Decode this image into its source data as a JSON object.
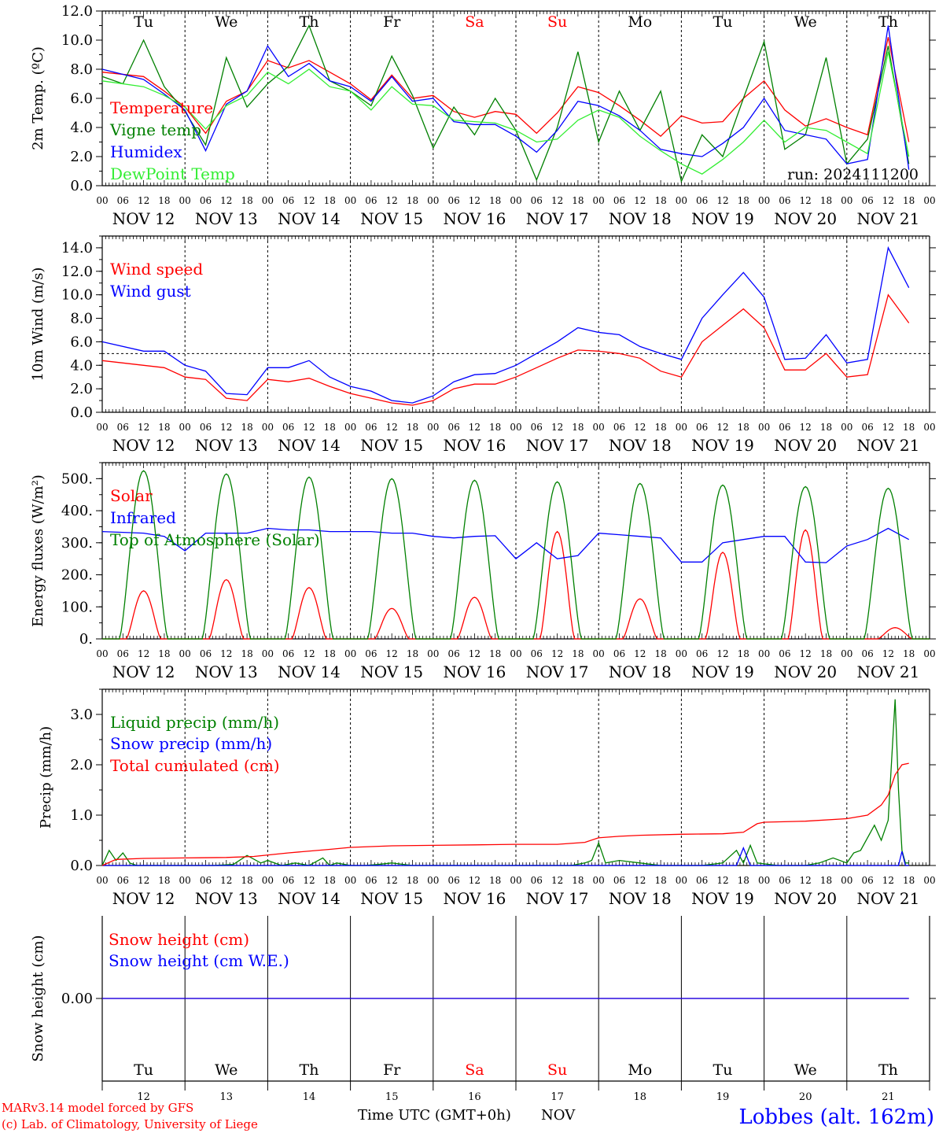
{
  "days": [
    "Tu",
    "We",
    "Th",
    "Fr",
    "Sa",
    "Su",
    "Mo",
    "Tu",
    "We",
    "Th"
  ],
  "weekend_days": [
    4,
    5
  ],
  "hour_ticks": [
    "00",
    "06",
    "12",
    "18"
  ],
  "end_tick": "00",
  "date_labels": [
    "NOV 12",
    "NOV 13",
    "NOV 14",
    "NOV 15",
    "NOV 16",
    "NOV 17",
    "NOV 18",
    "NOV 19",
    "NOV 20",
    "NOV 21"
  ],
  "day_numbers": [
    "12",
    "13",
    "14",
    "15",
    "16",
    "17",
    "18",
    "19",
    "20",
    "21"
  ],
  "colors": {
    "red": "#ff0000",
    "green": "#008000",
    "blue": "#0000ff",
    "lightgreen": "#33ee33",
    "purple": "#7f007f",
    "weekend": "#ff0000"
  },
  "run_label": "run: 2024111200",
  "footer": {
    "model": "MARv3.14 model forced by GFS",
    "copyright": "(c) Lab. of Climatology, University of Liege",
    "time_axis": "Time UTC (GMT+0h)",
    "month": "NOV",
    "station": "Lobbes (alt. 162m)"
  },
  "chart_data": [
    {
      "type": "line",
      "ylabel": "2m Temp. (ºC)",
      "ylim": [
        0,
        12
      ],
      "yticks": [
        0,
        2,
        4,
        6,
        8,
        10,
        12
      ],
      "ytick_labels": [
        "0.0",
        "2.0",
        "4.0",
        "6.0",
        "8.0",
        "10.0",
        "12.0"
      ],
      "grid": "vertical dashed day separators",
      "legend_position": "bottom-left",
      "series": [
        {
          "name": "Temperature",
          "color": "red",
          "x": [
            0,
            12,
            18,
            24,
            30,
            36,
            42,
            48,
            54,
            60,
            66,
            72,
            78,
            84,
            90,
            96,
            102,
            108,
            114,
            120,
            126,
            132,
            138,
            144,
            150,
            156,
            162,
            168,
            174,
            180,
            186,
            192,
            198,
            204,
            210,
            216,
            222,
            228,
            234
          ],
          "y": [
            7.8,
            7.5,
            6.5,
            5.4,
            3.6,
            5.8,
            6.5,
            8.6,
            8.1,
            8.6,
            7.8,
            7.0,
            5.9,
            7.6,
            6.0,
            6.2,
            5.1,
            4.7,
            5.1,
            4.9,
            3.6,
            5.0,
            6.8,
            6.4,
            5.5,
            4.5,
            3.4,
            4.8,
            4.3,
            4.4,
            6.0,
            7.2,
            5.2,
            4.1,
            4.6,
            4.0,
            3.5,
            10.2,
            3.0
          ]
        },
        {
          "name": "Vigne temp",
          "color": "green",
          "x": [
            0,
            6,
            12,
            18,
            24,
            30,
            36,
            42,
            48,
            54,
            60,
            66,
            72,
            78,
            84,
            90,
            96,
            102,
            108,
            114,
            120,
            126,
            132,
            138,
            144,
            150,
            156,
            162,
            168,
            174,
            180,
            186,
            192,
            198,
            204,
            210,
            216,
            222,
            228,
            234
          ],
          "y": [
            7.5,
            7.0,
            10.0,
            6.8,
            5.1,
            2.8,
            8.8,
            5.4,
            7.0,
            8.2,
            11.0,
            7.2,
            6.5,
            5.5,
            8.9,
            6.2,
            2.6,
            5.4,
            3.5,
            6.0,
            3.8,
            0.4,
            4.0,
            9.2,
            3.0,
            6.5,
            3.8,
            6.5,
            0.3,
            3.5,
            2.0,
            6.0,
            9.9,
            2.5,
            3.5,
            8.8,
            1.5,
            3.2,
            9.6,
            1.5
          ]
        },
        {
          "name": "Humidex",
          "color": "blue",
          "x": [
            0,
            12,
            18,
            24,
            30,
            36,
            42,
            48,
            54,
            60,
            66,
            72,
            78,
            84,
            90,
            96,
            102,
            108,
            114,
            120,
            126,
            132,
            138,
            144,
            150,
            156,
            162,
            168,
            174,
            180,
            186,
            192,
            198,
            204,
            210,
            216,
            222,
            228,
            234
          ],
          "y": [
            8.0,
            7.3,
            6.3,
            5.2,
            2.4,
            5.6,
            6.5,
            9.6,
            7.5,
            8.4,
            7.2,
            6.8,
            5.8,
            7.5,
            5.8,
            6.0,
            4.4,
            4.2,
            4.2,
            3.4,
            2.3,
            3.8,
            5.8,
            5.5,
            4.8,
            3.8,
            2.5,
            2.2,
            2.0,
            2.9,
            4.0,
            6.0,
            3.8,
            3.5,
            3.2,
            1.5,
            1.8,
            11.0,
            1.1
          ]
        },
        {
          "name": "DewPoint Temp",
          "color": "lightgreen",
          "x": [
            0,
            12,
            18,
            24,
            30,
            36,
            42,
            48,
            54,
            60,
            66,
            72,
            78,
            84,
            90,
            96,
            102,
            108,
            114,
            120,
            126,
            132,
            138,
            144,
            150,
            156,
            162,
            168,
            174,
            180,
            186,
            192,
            198,
            204,
            210,
            216,
            222,
            228,
            234
          ],
          "y": [
            7.2,
            6.8,
            6.2,
            5.4,
            3.9,
            5.5,
            6.2,
            7.8,
            7.0,
            8.0,
            6.8,
            6.5,
            5.2,
            6.8,
            5.6,
            5.5,
            4.5,
            4.4,
            4.3,
            3.8,
            3.0,
            3.2,
            4.5,
            5.2,
            4.7,
            3.4,
            2.4,
            1.5,
            0.8,
            1.8,
            3.0,
            4.5,
            3.0,
            4.0,
            3.8,
            3.0,
            2.2,
            9.2,
            2.0
          ]
        }
      ]
    },
    {
      "type": "line",
      "ylabel": "10m Wind (m/s)",
      "ylim": [
        0,
        15
      ],
      "yticks": [
        0,
        2,
        4,
        6,
        8,
        10,
        12,
        14
      ],
      "ytick_labels": [
        "0.0",
        "2.0",
        "4.0",
        "6.0",
        "8.0",
        "10.0",
        "12.0",
        "14.0"
      ],
      "reference_line": 5,
      "grid": "vertical dashed day separators",
      "legend_position": "top-left",
      "series": [
        {
          "name": "Wind speed",
          "color": "red",
          "x": [
            0,
            12,
            18,
            24,
            30,
            36,
            42,
            48,
            54,
            60,
            66,
            72,
            78,
            84,
            90,
            96,
            102,
            108,
            114,
            120,
            126,
            132,
            138,
            144,
            150,
            156,
            162,
            168,
            174,
            180,
            186,
            192,
            198,
            204,
            210,
            216,
            222,
            228,
            234
          ],
          "y": [
            4.4,
            4.0,
            3.8,
            3.0,
            2.8,
            1.2,
            1.0,
            2.8,
            2.6,
            2.9,
            2.2,
            1.6,
            1.2,
            0.8,
            0.6,
            1.0,
            2.0,
            2.4,
            2.4,
            3.0,
            3.8,
            4.6,
            5.3,
            5.2,
            5.0,
            4.6,
            3.5,
            3.0,
            6.0,
            7.4,
            8.8,
            7.2,
            3.6,
            3.6,
            5.0,
            3.0,
            3.2,
            10.0,
            7.6
          ]
        },
        {
          "name": "Wind gust",
          "color": "blue",
          "x": [
            0,
            12,
            18,
            24,
            30,
            36,
            42,
            48,
            54,
            60,
            66,
            72,
            78,
            84,
            90,
            96,
            102,
            108,
            114,
            120,
            126,
            132,
            138,
            144,
            150,
            156,
            162,
            168,
            174,
            180,
            186,
            192,
            198,
            204,
            210,
            216,
            222,
            228,
            234
          ],
          "y": [
            6.0,
            5.2,
            5.2,
            4.0,
            3.5,
            1.6,
            1.5,
            3.8,
            3.8,
            4.4,
            3.0,
            2.2,
            1.8,
            1.0,
            0.8,
            1.4,
            2.6,
            3.2,
            3.3,
            4.0,
            5.0,
            6.0,
            7.2,
            6.8,
            6.6,
            5.6,
            5.0,
            4.5,
            8.0,
            10.0,
            11.9,
            9.8,
            4.5,
            4.6,
            6.6,
            4.2,
            4.5,
            14.0,
            10.6
          ]
        }
      ]
    },
    {
      "type": "line",
      "ylabel": "Energy fluxes (W/m²)",
      "ylim": [
        0,
        550
      ],
      "yticks": [
        0,
        100,
        200,
        300,
        400,
        500
      ],
      "ytick_labels": [
        "0.",
        "100.",
        "200.",
        "300.",
        "400.",
        "500."
      ],
      "grid": "vertical dashed day separators",
      "legend_position": "top-left",
      "series": [
        {
          "name": "Solar",
          "color": "red",
          "type": "daily-peaks",
          "peak_hours": [
            12,
            12,
            12,
            12,
            12,
            12,
            12,
            12,
            12,
            14
          ],
          "peaks": [
            150,
            185,
            160,
            95,
            130,
            335,
            125,
            270,
            340,
            35
          ]
        },
        {
          "name": "Infrared",
          "color": "blue",
          "x": [
            0,
            12,
            18,
            24,
            30,
            36,
            42,
            48,
            54,
            60,
            66,
            72,
            78,
            84,
            90,
            96,
            102,
            108,
            114,
            120,
            126,
            132,
            138,
            144,
            150,
            156,
            162,
            168,
            174,
            180,
            186,
            192,
            198,
            204,
            210,
            216,
            222,
            228,
            234
          ],
          "y": [
            335,
            330,
            320,
            275,
            330,
            330,
            330,
            345,
            340,
            340,
            335,
            335,
            335,
            330,
            330,
            320,
            315,
            320,
            322,
            250,
            300,
            250,
            260,
            330,
            325,
            320,
            315,
            240,
            240,
            300,
            310,
            320,
            320,
            240,
            238,
            290,
            310,
            345,
            310
          ]
        },
        {
          "name": "Top of Atmosphere (Solar)",
          "color": "green",
          "type": "daily-peaks",
          "peak_hours": [
            12,
            12,
            12,
            12,
            12,
            12,
            12,
            12,
            12,
            12
          ],
          "peaks": [
            525,
            515,
            505,
            500,
            495,
            490,
            485,
            480,
            475,
            470
          ]
        }
      ]
    },
    {
      "type": "line",
      "ylabel": "Precip (mm/h)",
      "ylim": [
        0,
        3.5
      ],
      "yticks": [
        0,
        1,
        2,
        3
      ],
      "ytick_labels": [
        "0.0",
        "1.0",
        "2.0",
        "3.0"
      ],
      "grid": "vertical dashed day separators",
      "legend_position": "top-left",
      "series": [
        {
          "name": "Liquid precip (mm/h)",
          "color": "green",
          "x": [
            0,
            2,
            4,
            6,
            8,
            10,
            14,
            20,
            26,
            32,
            38,
            42,
            46,
            48,
            52,
            56,
            60,
            64,
            66,
            68,
            72,
            76,
            80,
            84,
            90,
            96,
            100,
            110,
            120,
            130,
            136,
            140,
            142,
            144,
            146,
            150,
            156,
            162,
            168,
            174,
            180,
            184,
            186,
            188,
            190,
            196,
            204,
            208,
            212,
            216,
            218,
            220,
            224,
            226,
            228,
            230,
            231,
            232,
            233,
            234
          ],
          "y": [
            0,
            0.3,
            0.1,
            0.25,
            0.05,
            0,
            0,
            0,
            0,
            0,
            0.02,
            0.2,
            0.05,
            0.1,
            0,
            0.05,
            0,
            0.15,
            0,
            0.05,
            0,
            0,
            0.02,
            0.05,
            0,
            0,
            0,
            0,
            0,
            0,
            0,
            0.05,
            0.1,
            0.45,
            0.05,
            0.1,
            0.05,
            0,
            0,
            0,
            0.05,
            0.3,
            0.05,
            0.4,
            0.05,
            0,
            0,
            0.05,
            0.15,
            0.05,
            0.25,
            0.3,
            0.8,
            0.5,
            0.9,
            3.3,
            1.5,
            0.3,
            0.05,
            0.05
          ]
        },
        {
          "name": "Snow precip (mm/h)",
          "color": "blue",
          "x": [
            0,
            60,
            184,
            186,
            188,
            231,
            232,
            233,
            234
          ],
          "y": [
            0,
            0,
            0,
            0.35,
            0,
            0,
            0.28,
            0,
            0
          ]
        },
        {
          "name": "Total cumulated (cm)",
          "color": "red",
          "x": [
            0,
            4,
            12,
            24,
            36,
            44,
            54,
            66,
            72,
            84,
            96,
            108,
            120,
            132,
            140,
            144,
            150,
            156,
            168,
            180,
            186,
            190,
            192,
            204,
            216,
            222,
            226,
            228,
            230,
            232,
            234
          ],
          "y": [
            0,
            0.12,
            0.14,
            0.15,
            0.16,
            0.18,
            0.25,
            0.32,
            0.36,
            0.39,
            0.4,
            0.41,
            0.42,
            0.42,
            0.46,
            0.55,
            0.58,
            0.6,
            0.62,
            0.63,
            0.66,
            0.83,
            0.86,
            0.88,
            0.93,
            1.0,
            1.2,
            1.4,
            1.8,
            2.0,
            2.03
          ]
        }
      ]
    },
    {
      "type": "line",
      "ylabel": "Snow height (cm)",
      "ylim": [
        -1,
        1
      ],
      "yticks": [
        0
      ],
      "ytick_labels": [
        "0.00"
      ],
      "grid": "vertical day separators",
      "legend_position": "top-left",
      "series": [
        {
          "name": "Snow height (cm)",
          "color": "red",
          "x": [
            0,
            234
          ],
          "y": [
            0,
            0
          ]
        },
        {
          "name": "Snow height (cm W.E.)",
          "color": "blue",
          "x": [
            0,
            234
          ],
          "y": [
            0,
            0
          ]
        }
      ]
    }
  ]
}
